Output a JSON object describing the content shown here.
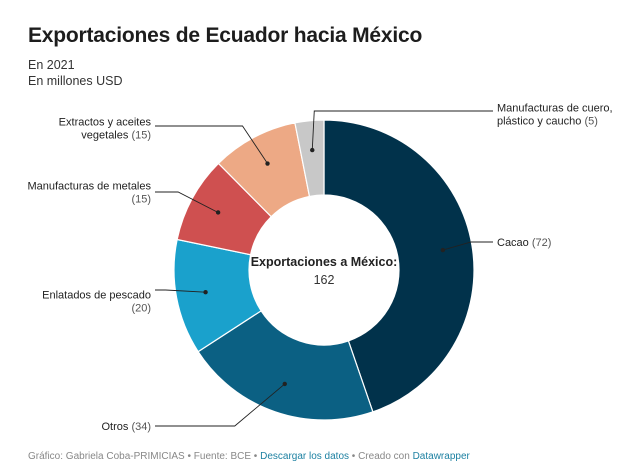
{
  "header": {
    "title": "Exportaciones de Ecuador hacia México",
    "subtitle_line1": "En 2021",
    "subtitle_line2": "En millones USD"
  },
  "chart_data": {
    "type": "pie",
    "variant": "donut",
    "center_label": "Exportaciones a México:",
    "center_value": "162",
    "slices": [
      {
        "name": "Cacao",
        "value": 72,
        "color": "#01324b"
      },
      {
        "name": "Otros",
        "value": 34,
        "color": "#0b6083"
      },
      {
        "name": "Enlatados de pescado",
        "value": 20,
        "color": "#1aa1cc"
      },
      {
        "name": "Manufacturas de metales",
        "value": 15,
        "color": "#cf5050"
      },
      {
        "name": "Extractos y aceites vegetales",
        "value": 15,
        "color": "#eda985"
      },
      {
        "name": "Manufacturas de cuero, plástico y caucho",
        "value": 5,
        "color": "#c8c8c8"
      }
    ],
    "labels": [
      {
        "lines": [
          "Cacao"
        ],
        "value": "(72)"
      },
      {
        "lines": [
          "Otros"
        ],
        "value": "(34)"
      },
      {
        "lines": [
          "Enlatados de pescado"
        ],
        "value": "(20)"
      },
      {
        "lines": [
          "Manufacturas de metales"
        ],
        "value": "(15)"
      },
      {
        "lines": [
          "Extractos y aceites",
          "vegetales"
        ],
        "value": "(15)"
      },
      {
        "lines": [
          "Manufacturas de cuero,",
          "plástico y caucho"
        ],
        "value": "(5)"
      }
    ]
  },
  "footer": {
    "prefix": "Gráfico: Gabriela Coba-PRIMICIAS • Fuente: BCE • ",
    "download_link": "Descargar los datos",
    "middle": " • Creado con ",
    "tool_link": "Datawrapper"
  }
}
